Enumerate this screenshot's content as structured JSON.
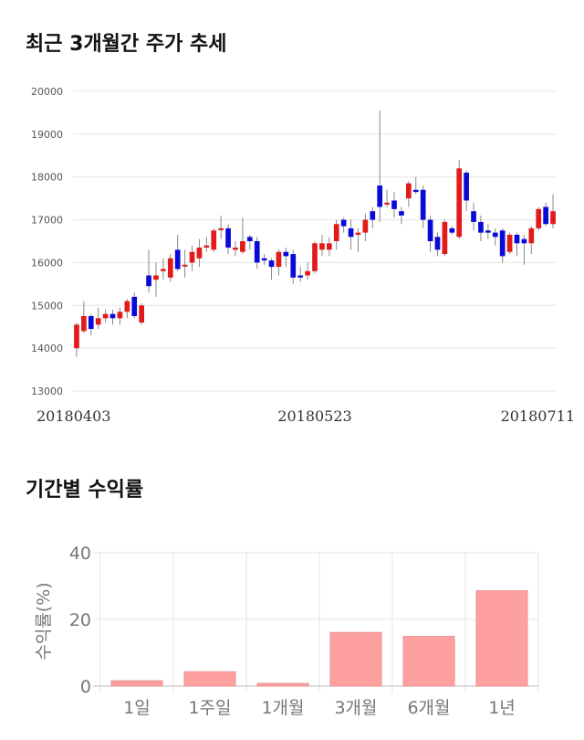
{
  "section1": {
    "title": "최근 3개월간 주가 추세"
  },
  "section2": {
    "title": "기간별 수익률"
  },
  "colors": {
    "up": "#e31a1a",
    "down": "#0a0ad8",
    "bar": "#ffa0a0",
    "bar_border": "#e89090",
    "grid": "#e6e6e6"
  },
  "chart_data": [
    {
      "type": "candlestick",
      "title": "최근 3개월간 주가 추세",
      "y_ticks": [
        13000,
        14000,
        15000,
        16000,
        17000,
        18000,
        19000,
        20000
      ],
      "ylim": [
        13000,
        20000
      ],
      "x_tick_labels": [
        {
          "label": "20180403",
          "index": 0
        },
        {
          "label": "20180523",
          "index": 33
        },
        {
          "label": "20180711",
          "index": 66
        }
      ],
      "grid": true,
      "candles": [
        [
          14000,
          14550,
          13800,
          14600
        ],
        [
          14400,
          14750,
          14350,
          15100
        ],
        [
          14750,
          14450,
          14300,
          14800
        ],
        [
          14550,
          14700,
          14450,
          14950
        ],
        [
          14700,
          14800,
          14600,
          14900
        ],
        [
          14800,
          14700,
          14550,
          14900
        ],
        [
          14700,
          14850,
          14550,
          14950
        ],
        [
          14850,
          15100,
          14700,
          15150
        ],
        [
          15200,
          14750,
          14700,
          15300
        ],
        [
          14600,
          15000,
          14550,
          15050
        ],
        [
          15700,
          15450,
          15300,
          16300
        ],
        [
          15600,
          15700,
          15200,
          16000
        ],
        [
          15800,
          15850,
          15600,
          16100
        ],
        [
          15650,
          16100,
          15550,
          16200
        ],
        [
          16300,
          15850,
          15800,
          16650
        ],
        [
          15950,
          15950,
          15650,
          16300
        ],
        [
          16000,
          16250,
          15800,
          16400
        ],
        [
          16100,
          16350,
          15900,
          16550
        ],
        [
          16350,
          16400,
          16250,
          16600
        ],
        [
          16300,
          16750,
          16250,
          16800
        ],
        [
          16800,
          16800,
          16550,
          17100
        ],
        [
          16800,
          16350,
          16200,
          16900
        ],
        [
          16300,
          16350,
          16150,
          16500
        ],
        [
          16250,
          16500,
          16200,
          17050
        ],
        [
          16600,
          16500,
          16300,
          16650
        ],
        [
          16500,
          16000,
          15850,
          16600
        ],
        [
          16100,
          16050,
          15950,
          16200
        ],
        [
          16050,
          15900,
          15600,
          16100
        ],
        [
          15900,
          16250,
          15700,
          16300
        ],
        [
          16250,
          16150,
          15900,
          16350
        ],
        [
          16200,
          15650,
          15500,
          16300
        ],
        [
          15700,
          15650,
          15550,
          15900
        ],
        [
          15700,
          15800,
          15600,
          16000
        ],
        [
          15800,
          16450,
          15750,
          16500
        ],
        [
          16300,
          16450,
          16150,
          16650
        ],
        [
          16300,
          16450,
          16150,
          16600
        ],
        [
          16500,
          16900,
          16300,
          17000
        ],
        [
          17000,
          16850,
          16700,
          17050
        ],
        [
          16800,
          16600,
          16300,
          17000
        ],
        [
          16650,
          16700,
          16250,
          16800
        ],
        [
          16700,
          17000,
          16500,
          17150
        ],
        [
          17200,
          17000,
          16800,
          17300
        ],
        [
          17800,
          17300,
          16950,
          19550
        ],
        [
          17400,
          17400,
          17300,
          17700
        ],
        [
          17450,
          17250,
          17050,
          17650
        ],
        [
          17200,
          17100,
          16900,
          17300
        ],
        [
          17500,
          17850,
          17300,
          17900
        ],
        [
          17700,
          17650,
          17600,
          18000
        ],
        [
          17700,
          17000,
          16800,
          17800
        ],
        [
          17000,
          16500,
          16250,
          17100
        ],
        [
          16600,
          16300,
          16150,
          16700
        ],
        [
          16200,
          16950,
          16150,
          17000
        ],
        [
          16800,
          16700,
          16650,
          16850
        ],
        [
          16600,
          18200,
          16550,
          18400
        ],
        [
          18100,
          17450,
          17200,
          18150
        ],
        [
          17200,
          16950,
          16750,
          17400
        ],
        [
          16950,
          16700,
          16500,
          17100
        ],
        [
          16750,
          16700,
          16550,
          16900
        ],
        [
          16700,
          16600,
          16400,
          16800
        ],
        [
          16750,
          16150,
          16000,
          16800
        ],
        [
          16250,
          16650,
          16200,
          16700
        ],
        [
          16650,
          16450,
          16150,
          16700
        ],
        [
          16550,
          16450,
          15950,
          16650
        ],
        [
          16450,
          16800,
          16200,
          16850
        ],
        [
          16800,
          17250,
          16750,
          17300
        ],
        [
          17300,
          16900,
          16850,
          17400
        ],
        [
          16900,
          17200,
          16800,
          17600
        ]
      ]
    },
    {
      "type": "bar",
      "title": "기간별 수익률",
      "ylabel": "수익률(%)",
      "categories": [
        "1일",
        "1주일",
        "1개월",
        "3개월",
        "6개월",
        "1년"
      ],
      "values": [
        1.6,
        4.3,
        0.8,
        16.1,
        14.9,
        28.6
      ],
      "y_ticks": [
        0,
        20,
        40
      ],
      "ylim": [
        0,
        40
      ],
      "grid": true
    }
  ]
}
